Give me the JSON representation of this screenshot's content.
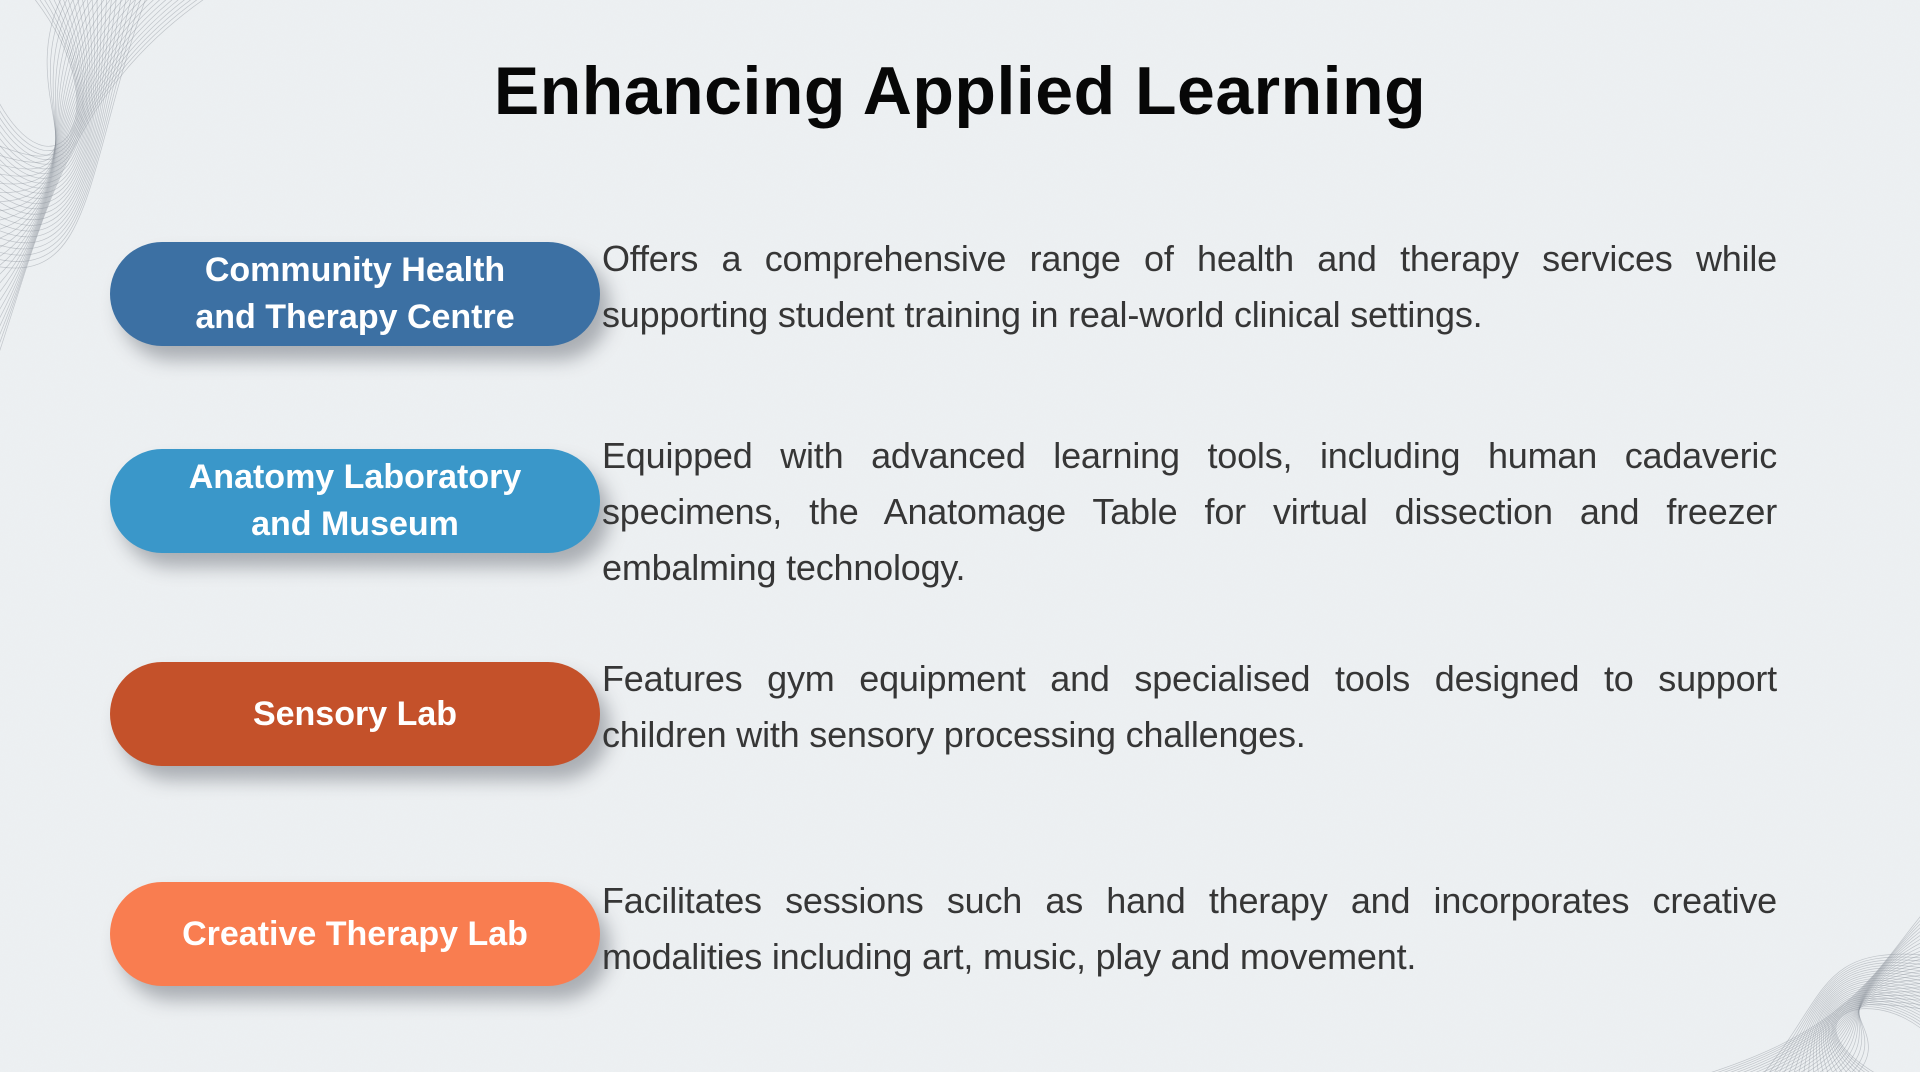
{
  "slide": {
    "title": "Enhancing Applied Learning",
    "background_color": "#edf0f2",
    "text_color": "#363636"
  },
  "rows": [
    {
      "label_lines": [
        "Community Health",
        "and Therapy Centre"
      ],
      "pill_color": "#3c70a3",
      "description": "Offers a comprehensive range of health and therapy services while supporting student training in real-world clinical settings."
    },
    {
      "label_lines": [
        "Anatomy Laboratory",
        "and Museum"
      ],
      "pill_color": "#3a97c9",
      "description": "Equipped with advanced learning tools, including human cadaveric specimens, the Anatomage Table for virtual dissection and freezer embalming technology."
    },
    {
      "label_lines": [
        "Sensory Lab"
      ],
      "pill_color": "#c4512a",
      "description": "Features gym equipment and specialised tools designed to support children with sensory processing challenges."
    },
    {
      "label_lines": [
        "Creative Therapy Lab"
      ],
      "pill_color": "#f97d50",
      "description": "Facilitates sessions such as hand therapy and incorporates creative modalities including art, music, play and movement."
    }
  ]
}
